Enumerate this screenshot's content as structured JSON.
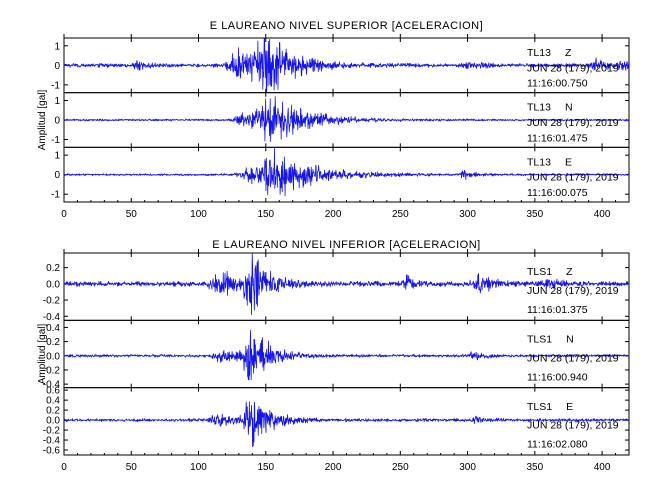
{
  "colors": {
    "trace": "#1515e6",
    "axis": "#000000",
    "background": "#ffffff"
  },
  "chart_data": [
    {
      "type": "line",
      "title": "E LAUREANO NIVEL SUPERIOR [ACELERACION]",
      "xlabel": "",
      "ylabel": "Amplitud [gal]",
      "xlim": [
        0,
        420
      ],
      "x_ticks": [
        "0",
        "50",
        "100",
        "150",
        "200",
        "250",
        "300",
        "350",
        "400"
      ],
      "grid": false,
      "series": [
        {
          "station": "TL13",
          "component": "Z",
          "date": "JUN 28 (179), 2019",
          "time": "11:16:00.750",
          "ylim": [
            -1.4,
            1.4
          ],
          "y_ticks": [
            "-1",
            "0",
            "1"
          ],
          "event": [
            {
              "center": 130,
              "width": 7,
              "amp": 0.8
            },
            {
              "center": 152,
              "width": 9,
              "amp": 1.35
            },
            {
              "center": 145,
              "width": 4,
              "amp": 0.6
            }
          ],
          "noise": 0.1,
          "bursts": [
            {
              "center": 395,
              "width": 4,
              "amp": 0.3
            },
            {
              "center": 415,
              "width": 2,
              "amp": 0.45
            },
            {
              "center": 55,
              "width": 3,
              "amp": 0.18
            },
            {
              "center": 300,
              "width": 4,
              "amp": 0.2
            }
          ]
        },
        {
          "station": "TL13",
          "component": "N",
          "date": "JUN 28 (179), 2019",
          "time": "11:16:01.475",
          "ylim": [
            -1.4,
            1.4
          ],
          "y_ticks": [
            "-1",
            "0",
            "1"
          ],
          "event": [
            {
              "center": 155,
              "width": 12,
              "amp": 1.2
            },
            {
              "center": 132,
              "width": 5,
              "amp": 0.3
            }
          ],
          "noise": 0.05,
          "bursts": []
        },
        {
          "station": "TL13",
          "component": "E",
          "date": "JUN 28 (179), 2019",
          "time": "11:16:00.075",
          "ylim": [
            -1.4,
            1.4
          ],
          "y_ticks": [
            "-1",
            "0",
            "1"
          ],
          "event": [
            {
              "center": 157,
              "width": 13,
              "amp": 1.3
            },
            {
              "center": 135,
              "width": 5,
              "amp": 0.3
            }
          ],
          "noise": 0.05,
          "bursts": [
            {
              "center": 298,
              "width": 3,
              "amp": 0.25
            }
          ]
        }
      ]
    },
    {
      "type": "line",
      "title": "E LAUREANO NIVEL INFERIOR [ACELERACION]",
      "xlabel": "",
      "ylabel": "Amplitud [gal]",
      "xlim": [
        0,
        420
      ],
      "x_ticks": [
        "0",
        "50",
        "100",
        "150",
        "200",
        "250",
        "300",
        "350",
        "400"
      ],
      "grid": false,
      "series": [
        {
          "station": "TLS1",
          "component": "Z",
          "date": "JUN 28 (179), 2019",
          "time": "11:16:01.375",
          "ylim": [
            -0.45,
            0.38
          ],
          "y_ticks": [
            "-0.4",
            "-0.2",
            "0.0",
            "0.2"
          ],
          "event": [
            {
              "center": 120,
              "width": 10,
              "amp": 0.15
            },
            {
              "center": 140,
              "width": 5,
              "amp": 0.32
            }
          ],
          "noise": 0.03,
          "bursts": [
            {
              "center": 255,
              "width": 4,
              "amp": 0.08
            },
            {
              "center": 308,
              "width": 4,
              "amp": 0.15
            },
            {
              "center": 360,
              "width": 4,
              "amp": 0.06
            }
          ]
        },
        {
          "station": "TLS1",
          "component": "N",
          "date": "JUN 28 (179), 2019",
          "time": "11:16:00.940",
          "ylim": [
            -0.45,
            0.5
          ],
          "y_ticks": [
            "-0.4",
            "-0.2",
            "0.0",
            "0.2",
            "0.4"
          ],
          "event": [
            {
              "center": 140,
              "width": 6,
              "amp": 0.45
            },
            {
              "center": 118,
              "width": 6,
              "amp": 0.1
            }
          ],
          "noise": 0.02,
          "bursts": [
            {
              "center": 305,
              "width": 4,
              "amp": 0.05
            }
          ]
        },
        {
          "station": "TLS1",
          "component": "E",
          "date": "JUN 28 (179), 2019",
          "time": "11:16:02.080",
          "ylim": [
            -0.7,
            0.65
          ],
          "y_ticks": [
            "-0.6",
            "-0.4",
            "-0.2",
            "0.0",
            "0.2",
            "0.4",
            "0.6"
          ],
          "event": [
            {
              "center": 140,
              "width": 6,
              "amp": 0.55
            },
            {
              "center": 115,
              "width": 6,
              "amp": 0.12
            }
          ],
          "noise": 0.03,
          "bursts": [
            {
              "center": 307,
              "width": 4,
              "amp": 0.05
            }
          ]
        }
      ]
    }
  ]
}
